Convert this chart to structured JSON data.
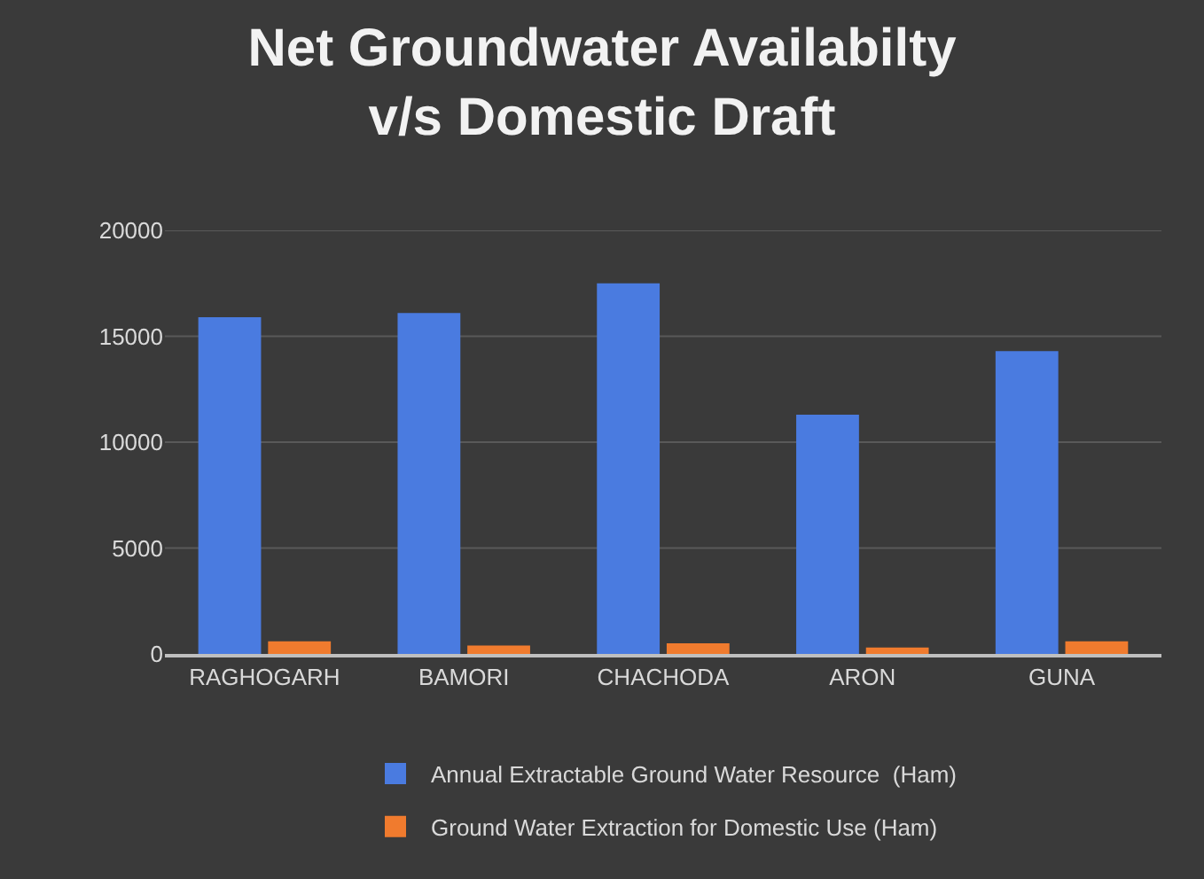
{
  "chart_data": {
    "type": "bar",
    "title": "Net Groundwater Availabilty\nv/s Domestic Draft",
    "categories": [
      "RAGHOGARH",
      "BAMORI",
      "CHACHODA",
      "ARON",
      "GUNA"
    ],
    "series": [
      {
        "name": "Annual Extractable Ground Water Resource  (Ham)",
        "color": "#4a7be0",
        "values": [
          15900,
          16100,
          17500,
          11300,
          14300
        ]
      },
      {
        "name": "Ground Water Extraction for Domestic Use (Ham)",
        "color": "#f07b2e",
        "values": [
          600,
          400,
          500,
          300,
          600
        ]
      }
    ],
    "ylim": [
      0,
      20000
    ],
    "yticks": [
      0,
      5000,
      10000,
      15000,
      20000
    ],
    "grid": "y",
    "legend": "bottom"
  }
}
